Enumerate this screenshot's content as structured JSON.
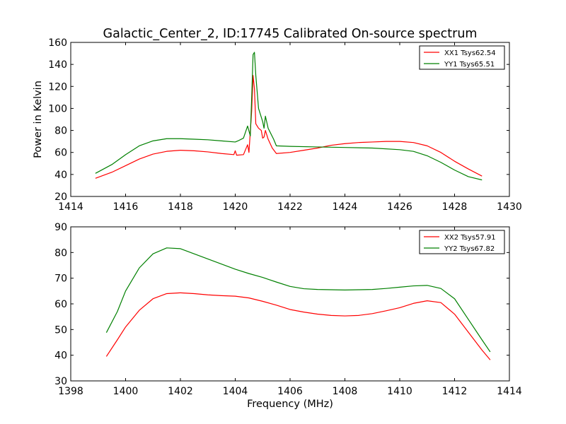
{
  "title": "Galactic_Center_2, ID:17745 Calibrated On-source spectrum",
  "chart_data": [
    {
      "type": "line",
      "ylabel": "Power in Kelvin",
      "xlabel": "",
      "xlim": [
        1414,
        1430
      ],
      "ylim": [
        20,
        160
      ],
      "xticks": [
        1414,
        1416,
        1418,
        1420,
        1422,
        1424,
        1426,
        1428,
        1430
      ],
      "yticks": [
        20,
        40,
        60,
        80,
        100,
        120,
        140,
        160
      ],
      "legend_position": "top-right",
      "series": [
        {
          "name": "XX1 Tsys62.54",
          "color": "#ff0000",
          "points": [
            [
              1414.9,
              36.5
            ],
            [
              1415.5,
              42
            ],
            [
              1416,
              48
            ],
            [
              1416.5,
              54
            ],
            [
              1417,
              58.5
            ],
            [
              1417.5,
              61
            ],
            [
              1418,
              62
            ],
            [
              1418.5,
              61.5
            ],
            [
              1419,
              60.5
            ],
            [
              1419.5,
              59
            ],
            [
              1419.95,
              58
            ],
            [
              1420.0,
              61.5
            ],
            [
              1420.05,
              57.5
            ],
            [
              1420.3,
              58
            ],
            [
              1420.45,
              67
            ],
            [
              1420.5,
              60
            ],
            [
              1420.6,
              98
            ],
            [
              1420.65,
              130
            ],
            [
              1420.7,
              118
            ],
            [
              1420.75,
              86
            ],
            [
              1420.85,
              82
            ],
            [
              1420.95,
              80
            ],
            [
              1421.0,
              73
            ],
            [
              1421.05,
              74
            ],
            [
              1421.1,
              80
            ],
            [
              1421.2,
              72
            ],
            [
              1421.35,
              64
            ],
            [
              1421.5,
              59
            ],
            [
              1422,
              60
            ],
            [
              1422.5,
              62
            ],
            [
              1423,
              64
            ],
            [
              1423.5,
              66.5
            ],
            [
              1424,
              68
            ],
            [
              1424.5,
              69
            ],
            [
              1425,
              69.5
            ],
            [
              1425.5,
              70
            ],
            [
              1426,
              70
            ],
            [
              1426.5,
              69
            ],
            [
              1427,
              66
            ],
            [
              1427.5,
              60
            ],
            [
              1428,
              52
            ],
            [
              1428.5,
              45
            ],
            [
              1429,
              38.5
            ]
          ]
        },
        {
          "name": "YY1 Tsys65.51",
          "color": "#008000",
          "points": [
            [
              1414.9,
              41
            ],
            [
              1415.5,
              49
            ],
            [
              1416,
              58
            ],
            [
              1416.5,
              66
            ],
            [
              1417,
              70.5
            ],
            [
              1417.5,
              72.5
            ],
            [
              1418,
              72.5
            ],
            [
              1418.5,
              72
            ],
            [
              1419,
              71.5
            ],
            [
              1419.5,
              70.5
            ],
            [
              1420,
              69.5
            ],
            [
              1420.1,
              70.5
            ],
            [
              1420.3,
              73
            ],
            [
              1420.45,
              84
            ],
            [
              1420.55,
              75
            ],
            [
              1420.6,
              110
            ],
            [
              1420.65,
              149
            ],
            [
              1420.7,
              151
            ],
            [
              1420.75,
              130
            ],
            [
              1420.85,
              100
            ],
            [
              1420.9,
              96
            ],
            [
              1421.0,
              88
            ],
            [
              1421.05,
              82
            ],
            [
              1421.1,
              93
            ],
            [
              1421.2,
              82
            ],
            [
              1421.4,
              72
            ],
            [
              1421.5,
              66
            ],
            [
              1422,
              65.5
            ],
            [
              1423,
              65
            ],
            [
              1424,
              64.5
            ],
            [
              1425,
              64
            ],
            [
              1426,
              62.5
            ],
            [
              1426.5,
              61
            ],
            [
              1427,
              57
            ],
            [
              1427.5,
              51
            ],
            [
              1428,
              44
            ],
            [
              1428.5,
              38
            ],
            [
              1429,
              35
            ]
          ]
        }
      ]
    },
    {
      "type": "line",
      "ylabel": "",
      "xlabel": "Frequency (MHz)",
      "xlim": [
        1398,
        1414
      ],
      "ylim": [
        30,
        90
      ],
      "xticks": [
        1398,
        1400,
        1402,
        1404,
        1406,
        1408,
        1410,
        1412,
        1414
      ],
      "yticks": [
        30,
        40,
        50,
        60,
        70,
        80,
        90
      ],
      "legend_position": "top-right",
      "series": [
        {
          "name": "XX2 Tsys57.91",
          "color": "#ff0000",
          "points": [
            [
              1399.3,
              39.5
            ],
            [
              1399.7,
              46
            ],
            [
              1400,
              51
            ],
            [
              1400.5,
              57.5
            ],
            [
              1401,
              62
            ],
            [
              1401.5,
              64
            ],
            [
              1402,
              64.3
            ],
            [
              1402.5,
              64
            ],
            [
              1403,
              63.5
            ],
            [
              1403.5,
              63.2
            ],
            [
              1404,
              63
            ],
            [
              1404.5,
              62.3
            ],
            [
              1405,
              61
            ],
            [
              1405.5,
              59.5
            ],
            [
              1406,
              57.8
            ],
            [
              1406.5,
              56.8
            ],
            [
              1407,
              56
            ],
            [
              1407.5,
              55.5
            ],
            [
              1408,
              55.3
            ],
            [
              1408.5,
              55.5
            ],
            [
              1409,
              56.2
            ],
            [
              1409.5,
              57.3
            ],
            [
              1410,
              58.5
            ],
            [
              1410.5,
              60.2
            ],
            [
              1411,
              61.2
            ],
            [
              1411.5,
              60.5
            ],
            [
              1412,
              56
            ],
            [
              1412.5,
              49
            ],
            [
              1413,
              42
            ],
            [
              1413.3,
              38.2
            ]
          ]
        },
        {
          "name": "YY2 Tsys67.82",
          "color": "#008000",
          "points": [
            [
              1399.3,
              48.8
            ],
            [
              1399.7,
              57
            ],
            [
              1400,
              65
            ],
            [
              1400.5,
              74
            ],
            [
              1401,
              79.5
            ],
            [
              1401.5,
              81.8
            ],
            [
              1402,
              81.5
            ],
            [
              1402.5,
              79.5
            ],
            [
              1403,
              77.5
            ],
            [
              1403.5,
              75.5
            ],
            [
              1404,
              73.5
            ],
            [
              1404.5,
              71.8
            ],
            [
              1405,
              70.3
            ],
            [
              1405.5,
              68.5
            ],
            [
              1406,
              66.8
            ],
            [
              1406.5,
              65.9
            ],
            [
              1407,
              65.6
            ],
            [
              1407.5,
              65.5
            ],
            [
              1408,
              65.4
            ],
            [
              1408.5,
              65.5
            ],
            [
              1409,
              65.6
            ],
            [
              1409.5,
              66
            ],
            [
              1410,
              66.5
            ],
            [
              1410.5,
              67
            ],
            [
              1411,
              67.2
            ],
            [
              1411.5,
              66
            ],
            [
              1412,
              62
            ],
            [
              1412.5,
              54
            ],
            [
              1413,
              46
            ],
            [
              1413.3,
              41.3
            ]
          ]
        }
      ]
    }
  ]
}
